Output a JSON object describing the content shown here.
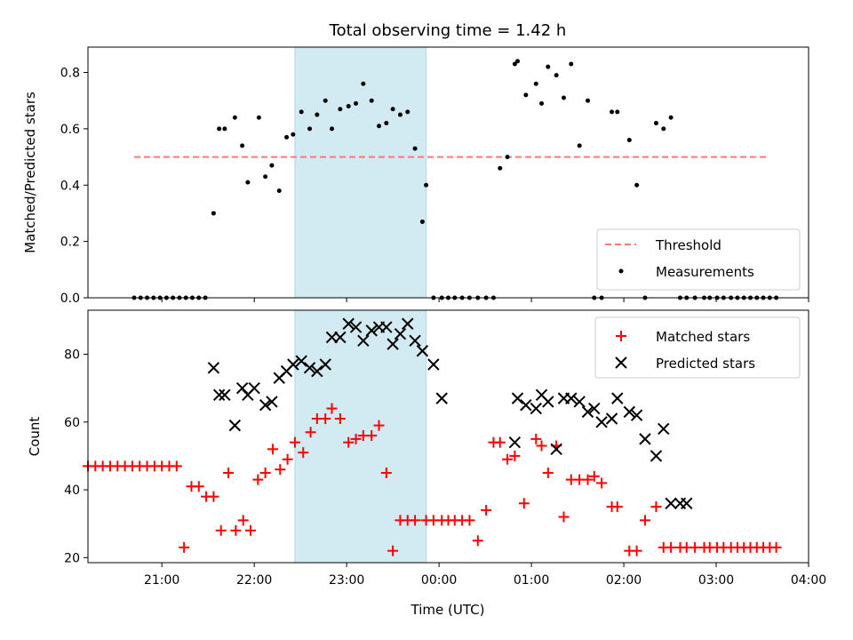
{
  "chart_data": {
    "title": "Total observing time = 1.42 h",
    "xlabel": "Time (UTC)",
    "x_ticks": [
      "21:00",
      "22:00",
      "23:00",
      "00:00",
      "01:00",
      "02:00",
      "03:00",
      "04:00"
    ],
    "x_tick_hours": [
      0,
      1,
      2,
      3,
      4,
      5,
      6,
      7
    ],
    "x_axis_note": "hours after 21:00 UTC",
    "xlim": [
      -0.8,
      7.0
    ],
    "shaded_interval": [
      1.44,
      2.86
    ],
    "colors": {
      "threshold": "#ff7777",
      "measurements": "#000000",
      "matched": "#ff0000",
      "predicted": "#000000",
      "shade": "#add8e6"
    },
    "top": {
      "type": "scatter",
      "ylabel": "Matched/Predicted stars",
      "ylim": [
        0,
        0.89
      ],
      "y_ticks": [
        0.0,
        0.2,
        0.4,
        0.6,
        0.8
      ],
      "threshold": {
        "name": "Threshold",
        "value": 0.5,
        "x": [
          -0.3,
          6.55
        ]
      },
      "measurements_name": "Measurements",
      "legend_position": "lower-right",
      "x": [
        -0.3,
        -0.23,
        -0.16,
        -0.09,
        -0.02,
        0.05,
        0.12,
        0.19,
        0.26,
        0.33,
        0.4,
        0.47,
        0.56,
        0.62,
        0.68,
        0.79,
        0.87,
        0.93,
        1.05,
        1.12,
        1.19,
        1.27,
        1.35,
        1.42,
        1.51,
        1.6,
        1.68,
        1.77,
        1.84,
        1.93,
        2.02,
        2.1,
        2.18,
        2.27,
        2.35,
        2.43,
        2.5,
        2.58,
        2.66,
        2.74,
        2.82,
        2.86,
        2.94,
        3.03,
        3.1,
        3.17,
        3.25,
        3.33,
        3.42,
        3.51,
        3.59,
        3.66,
        3.74,
        3.82,
        3.85,
        3.94,
        4.05,
        4.11,
        4.18,
        4.27,
        4.35,
        4.43,
        4.52,
        4.61,
        4.68,
        4.76,
        4.87,
        4.93,
        5.06,
        5.14,
        5.23,
        5.35,
        5.43,
        5.51,
        5.61,
        5.68,
        5.77,
        5.87,
        5.93,
        6.01,
        6.08,
        6.16,
        6.23,
        6.3,
        6.37,
        6.44,
        6.51,
        6.58,
        6.65
      ],
      "y": [
        0,
        0,
        0,
        0,
        0,
        0,
        0,
        0,
        0,
        0,
        0,
        0,
        0.3,
        0.6,
        0.6,
        0.64,
        0.54,
        0.41,
        0.64,
        0.43,
        0.47,
        0.38,
        0.57,
        0.58,
        0.66,
        0.6,
        0.65,
        0.7,
        0.6,
        0.67,
        0.68,
        0.69,
        0.76,
        0.7,
        0.61,
        0.62,
        0.67,
        0.65,
        0.66,
        0.53,
        0.27,
        0.4,
        0,
        0,
        0,
        0,
        0,
        0,
        0,
        0,
        0,
        0.46,
        0.5,
        0.83,
        0.84,
        0.72,
        0.76,
        0.69,
        0.82,
        0.79,
        0.71,
        0.83,
        0.54,
        0.7,
        0,
        0,
        0.66,
        0.66,
        0.56,
        0.4,
        0,
        0.62,
        0.6,
        0.64,
        0,
        0,
        0,
        0,
        0,
        0,
        0,
        0,
        0,
        0,
        0,
        0,
        0,
        0,
        0
      ]
    },
    "bottom": {
      "type": "scatter",
      "ylabel": "Count",
      "ylim": [
        18.5,
        93
      ],
      "y_ticks": [
        20,
        40,
        60,
        80
      ],
      "legend_position": "upper-right",
      "series": [
        {
          "name": "Matched stars",
          "marker": "plus",
          "x": [
            -0.8,
            -0.72,
            -0.64,
            -0.56,
            -0.48,
            -0.4,
            -0.32,
            -0.24,
            -0.16,
            -0.08,
            0,
            0.08,
            0.16,
            0.24,
            0.32,
            0.4,
            0.48,
            0.56,
            0.64,
            0.72,
            0.8,
            0.88,
            0.96,
            1.04,
            1.12,
            1.2,
            1.28,
            1.36,
            1.44,
            1.53,
            1.61,
            1.68,
            1.77,
            1.84,
            1.93,
            2.02,
            2.1,
            2.18,
            2.27,
            2.35,
            2.43,
            2.5,
            2.58,
            2.66,
            2.74,
            2.86,
            2.94,
            3.03,
            3.1,
            3.17,
            3.25,
            3.33,
            3.42,
            3.51,
            3.59,
            3.66,
            3.74,
            3.82,
            3.92,
            4.05,
            4.11,
            4.18,
            4.27,
            4.35,
            4.43,
            4.52,
            4.61,
            4.68,
            4.76,
            4.87,
            4.93,
            5.06,
            5.14,
            5.23,
            5.35,
            5.43,
            5.51,
            5.61,
            5.68,
            5.77,
            5.87,
            5.93,
            6.01,
            6.08,
            6.16,
            6.23,
            6.3,
            6.37,
            6.44,
            6.51,
            6.58,
            6.65
          ],
          "y": [
            47,
            47,
            47,
            47,
            47,
            47,
            47,
            47,
            47,
            47,
            47,
            47,
            47,
            23,
            41,
            41,
            38,
            38,
            28,
            45,
            28,
            31,
            28,
            43,
            45,
            52,
            46,
            49,
            54,
            51,
            57,
            61,
            61,
            64,
            61,
            54,
            55,
            56,
            56,
            59,
            45,
            22,
            31,
            31,
            31,
            31,
            31,
            31,
            31,
            31,
            31,
            31,
            25,
            34,
            54,
            54,
            49,
            50,
            36,
            55,
            53,
            45,
            53,
            32,
            43,
            43,
            43,
            44,
            42,
            35,
            35,
            22,
            22,
            31,
            35,
            23,
            23,
            23,
            23,
            23,
            23,
            23,
            23,
            23,
            23,
            23,
            23,
            23,
            23,
            23,
            23,
            23
          ]
        },
        {
          "name": "Predicted stars",
          "marker": "x",
          "x": [
            0.56,
            0.62,
            0.68,
            0.79,
            0.87,
            0.93,
            1.0,
            1.12,
            1.19,
            1.27,
            1.35,
            1.42,
            1.51,
            1.6,
            1.68,
            1.77,
            1.84,
            1.93,
            2.02,
            2.1,
            2.18,
            2.27,
            2.35,
            2.43,
            2.5,
            2.58,
            2.66,
            2.74,
            2.82,
            2.94,
            3.03,
            3.82,
            3.85,
            3.94,
            4.05,
            4.11,
            4.18,
            4.27,
            4.35,
            4.43,
            4.52,
            4.61,
            4.68,
            4.76,
            4.87,
            4.93,
            5.06,
            5.14,
            5.23,
            5.35,
            5.43,
            5.51,
            5.61,
            5.68
          ],
          "y": [
            76,
            68,
            68,
            59,
            70,
            68,
            70,
            65,
            66,
            73,
            75,
            77,
            78,
            76,
            75,
            77,
            85,
            85,
            89,
            88,
            84,
            87,
            88,
            88,
            83,
            86,
            89,
            84,
            81,
            77,
            67,
            54,
            67,
            65,
            64,
            68,
            66,
            52,
            67,
            67,
            66,
            63,
            64,
            60,
            61,
            67,
            63,
            62,
            55,
            50,
            58,
            36,
            36,
            36
          ]
        }
      ]
    }
  }
}
